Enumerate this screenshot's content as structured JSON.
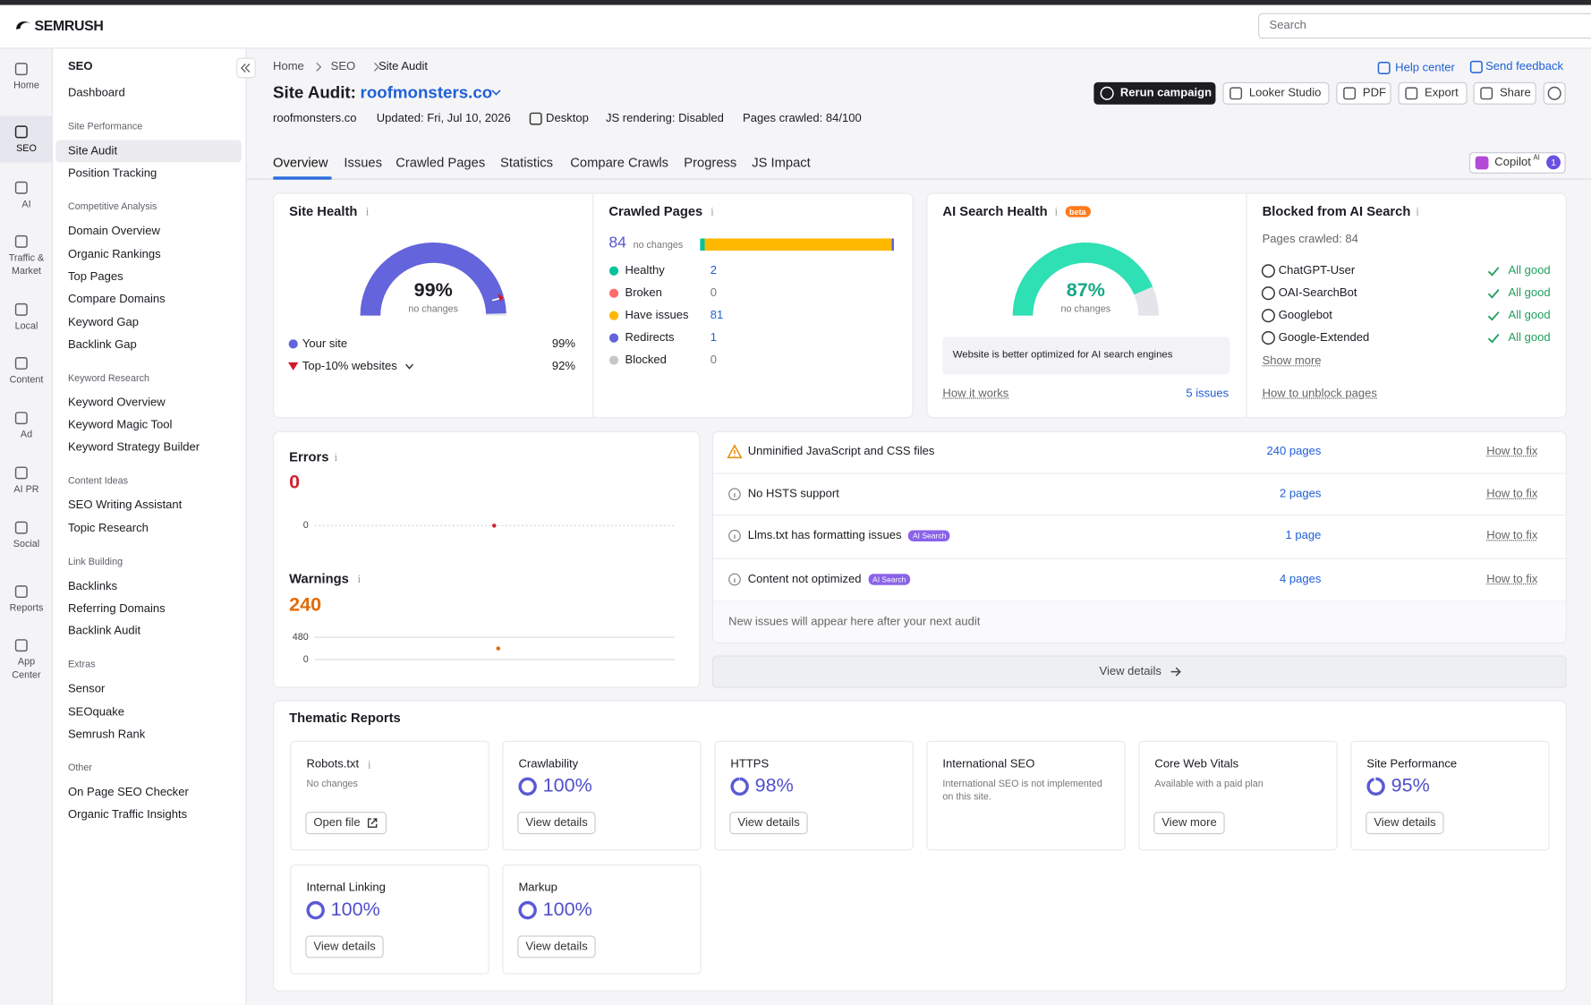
{
  "header": {
    "logo": "SEMRUSH",
    "search_placeholder": "Search"
  },
  "rail": [
    "Home",
    "SEO",
    "AI",
    "Traffic & Market",
    "Local",
    "Content",
    "Ad",
    "AI PR",
    "Social",
    "Reports",
    "App Center"
  ],
  "nav": {
    "title": "SEO",
    "top": "Dashboard",
    "sections": [
      {
        "heading": "Site Performance",
        "items": [
          "Site Audit",
          "Position Tracking"
        ]
      },
      {
        "heading": "Competitive Analysis",
        "items": [
          "Domain Overview",
          "Organic Rankings",
          "Top Pages",
          "Compare Domains",
          "Keyword Gap",
          "Backlink Gap"
        ]
      },
      {
        "heading": "Keyword Research",
        "items": [
          "Keyword Overview",
          "Keyword Magic Tool",
          "Keyword Strategy Builder"
        ]
      },
      {
        "heading": "Content Ideas",
        "items": [
          "SEO Writing Assistant",
          "Topic Research"
        ]
      },
      {
        "heading": "Link Building",
        "items": [
          "Backlinks",
          "Referring Domains",
          "Backlink Audit"
        ]
      },
      {
        "heading": "Extras",
        "items": [
          "Sensor",
          "SEOquake",
          "Semrush Rank"
        ]
      },
      {
        "heading": "Other",
        "items": [
          "On Page SEO Checker",
          "Organic Traffic Insights"
        ]
      }
    ]
  },
  "breadcrumb": [
    "Home",
    "SEO",
    "Site Audit"
  ],
  "title": {
    "prefix": "Site Audit:",
    "domain": "roofmonsters.co"
  },
  "meta": [
    "roofmonsters.co",
    "Updated: Fri, Jul 10, 2026",
    "Desktop",
    "JS rendering: Disabled",
    "Pages crawled: 84/100"
  ],
  "links": [
    "Help center",
    "Send feedback"
  ],
  "buttons": [
    "Rerun campaign",
    "Looker Studio",
    "PDF",
    "Export",
    "Share"
  ],
  "tabs": [
    "Overview",
    "Issues",
    "Crawled Pages",
    "Statistics",
    "Compare Crawls",
    "Progress",
    "JS Impact"
  ],
  "copilot": {
    "label": "Copilot",
    "sup": "AI",
    "badge": "1"
  },
  "site_health": {
    "title": "Site Health",
    "score": {
      "value": 99,
      "label": "99%"
    },
    "change": "no changes",
    "legend": [
      {
        "name": "Your site",
        "value": {
          "value": 99,
          "label": "99%"
        }
      },
      {
        "name": "Top-10% websites",
        "value": {
          "value": 92,
          "label": "92%"
        }
      }
    ]
  },
  "crawled_pages": {
    "title": "Crawled Pages",
    "total": 84,
    "change": "no changes",
    "rows": [
      {
        "name": "Healthy",
        "count": 2,
        "color": "#00c39a"
      },
      {
        "name": "Broken",
        "count": 0,
        "color": "#ff6b6b"
      },
      {
        "name": "Have issues",
        "count": 81,
        "color": "#ffb800"
      },
      {
        "name": "Redirects",
        "count": 1,
        "color": "#6262db"
      },
      {
        "name": "Blocked",
        "count": 0,
        "color": "#c6c6cc"
      }
    ]
  },
  "ai_search_health": {
    "title": "AI Search Health",
    "badge": "beta",
    "score": {
      "value": 87,
      "label": "87%"
    },
    "change": "no changes",
    "note": "Website is better optimized for AI search engines",
    "link": "How it works",
    "issues": "5 issues"
  },
  "blocked": {
    "title": "Blocked from AI Search",
    "subtitle": "Pages crawled: 84",
    "rows": [
      {
        "name": "ChatGPT-User",
        "status": "All good"
      },
      {
        "name": "OAI-SearchBot",
        "status": "All good"
      },
      {
        "name": "Googlebot",
        "status": "All good"
      },
      {
        "name": "Google-Extended",
        "status": "All good"
      }
    ],
    "more": "Show more",
    "link": "How to unblock pages"
  },
  "errors": {
    "title": "Errors",
    "value": 0,
    "ticks": [
      0
    ]
  },
  "warnings": {
    "title": "Warnings",
    "value": 240,
    "ticks": [
      480,
      0
    ]
  },
  "issues": {
    "rows": [
      {
        "text": "Unminified JavaScript and CSS files",
        "pages": "240 pages",
        "fix": "How to fix"
      },
      {
        "text": "No HSTS support",
        "pages": "2 pages",
        "fix": "How to fix"
      },
      {
        "text": "Llms.txt has formatting issues",
        "tag": "AI Search",
        "pages": "1 page",
        "fix": "How to fix"
      },
      {
        "text": "Content not optimized",
        "tag": "AI Search",
        "pages": "4 pages",
        "fix": "How to fix"
      }
    ],
    "footer": "New issues will appear here after your next audit",
    "view_details": "View details"
  },
  "thematic": {
    "title": "Thematic Reports",
    "cards": [
      {
        "name": "Robots.txt",
        "note": "No changes",
        "button": "Open file"
      },
      {
        "name": "Crawlability",
        "score": {
          "value": 100,
          "label": "100%"
        },
        "button": "View details"
      },
      {
        "name": "HTTPS",
        "score": {
          "value": 98,
          "label": "98%"
        },
        "button": "View details"
      },
      {
        "name": "International SEO",
        "note": "International SEO is not implemented on this site."
      },
      {
        "name": "Core Web Vitals",
        "note": "Available with a paid plan",
        "button": "View more"
      },
      {
        "name": "Site Performance",
        "score": {
          "value": 95,
          "label": "95%"
        },
        "button": "View details"
      },
      {
        "name": "Internal Linking",
        "score": {
          "value": 100,
          "label": "100%"
        },
        "button": "View details"
      },
      {
        "name": "Markup",
        "score": {
          "value": 100,
          "label": "100%"
        },
        "button": "View details"
      }
    ]
  }
}
